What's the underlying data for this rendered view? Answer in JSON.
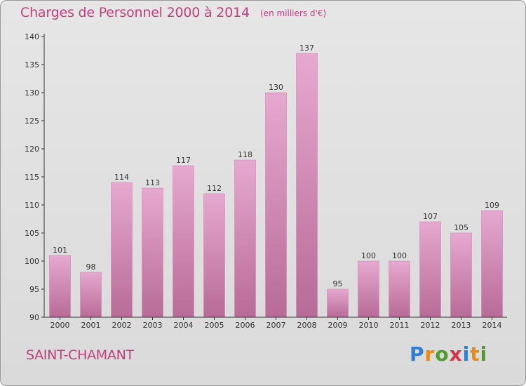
{
  "header": {
    "title": "Charges de Personnel 2000 à 2014",
    "subtitle": "(en milliers d'€)"
  },
  "footer": {
    "city": "SAINT-CHAMANT",
    "logo_text": "Proxiti"
  },
  "colors": {
    "title": "#c0407e",
    "bar_top": "#e6a9cf",
    "bar_bottom": "#b86b97",
    "background": "#dedede"
  },
  "chart_data": {
    "type": "bar",
    "title": "Charges de Personnel 2000 à 2014",
    "subtitle": "(en milliers d'€)",
    "xlabel": "",
    "ylabel": "",
    "categories": [
      "2000",
      "2001",
      "2002",
      "2003",
      "2004",
      "2005",
      "2006",
      "2007",
      "2008",
      "2009",
      "2010",
      "2011",
      "2012",
      "2013",
      "2014"
    ],
    "values": [
      101,
      98,
      114,
      113,
      117,
      112,
      118,
      130,
      137,
      95,
      100,
      100,
      107,
      105,
      109
    ],
    "ylim": [
      90,
      140
    ],
    "yticks": [
      90,
      95,
      100,
      105,
      110,
      115,
      120,
      125,
      130,
      135,
      140
    ],
    "grid": false,
    "legend": "none"
  }
}
